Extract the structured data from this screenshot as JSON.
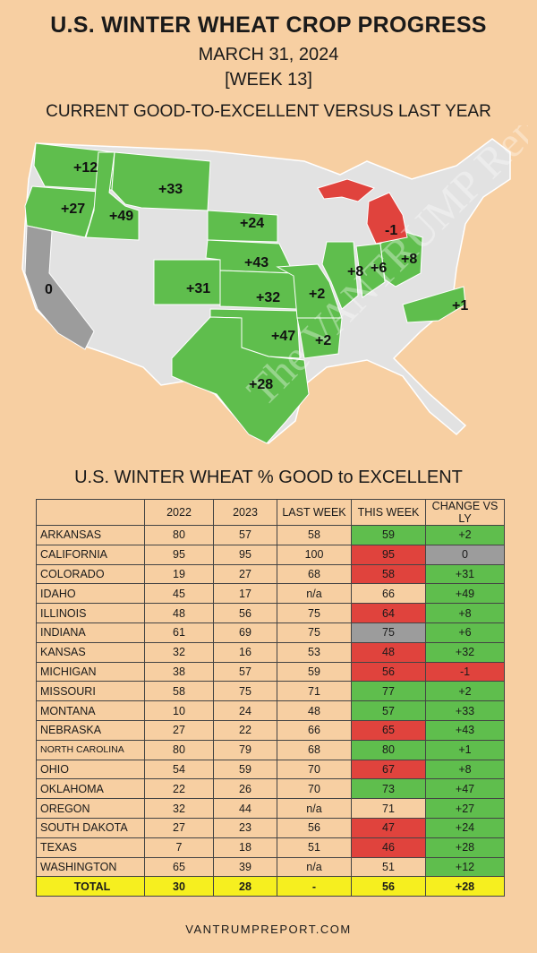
{
  "title": "U.S. WINTER WHEAT CROP PROGRESS",
  "date": "MARCH 31, 2024",
  "week": "[WEEK 13]",
  "map_subtitle": "CURRENT GOOD-TO-EXCELLENT VERSUS LAST YEAR",
  "watermark": "The VANTRUMP Report",
  "table_title": "U.S. WINTER WHEAT % GOOD to EXCELLENT",
  "footer": "VANTRUMPREPORT.COM",
  "colors": {
    "background": "#f7cfa2",
    "improved": "#5fbe4d",
    "declined": "#e0433d",
    "unchanged": "#9c9c9c",
    "total": "#f6ef1f",
    "no_data": "#e2e2e2"
  },
  "map": {
    "labels": [
      {
        "state": "WASHINGTON",
        "text": "+12"
      },
      {
        "state": "OREGON",
        "text": "+27"
      },
      {
        "state": "IDAHO",
        "text": "+49"
      },
      {
        "state": "MONTANA",
        "text": "+33"
      },
      {
        "state": "SOUTH DAKOTA",
        "text": "+24"
      },
      {
        "state": "NEBRASKA",
        "text": "+43"
      },
      {
        "state": "COLORADO",
        "text": "+31"
      },
      {
        "state": "KANSAS",
        "text": "+32"
      },
      {
        "state": "MISSOURI",
        "text": "+2"
      },
      {
        "state": "OKLAHOMA",
        "text": "+47"
      },
      {
        "state": "ARKANSAS",
        "text": "+2"
      },
      {
        "state": "TEXAS",
        "text": "+28"
      },
      {
        "state": "ILLINOIS",
        "text": "+8"
      },
      {
        "state": "INDIANA",
        "text": "+6"
      },
      {
        "state": "OHIO",
        "text": "+8"
      },
      {
        "state": "MICHIGAN",
        "text": "-1"
      },
      {
        "state": "NORTH CAROLINA",
        "text": "+1"
      },
      {
        "state": "CALIFORNIA",
        "text": "0"
      }
    ]
  },
  "chart_data": {
    "type": "table",
    "title": "U.S. WINTER WHEAT % GOOD to EXCELLENT",
    "columns": [
      "",
      "2022",
      "2023",
      "LAST WEEK",
      "THIS WEEK",
      "CHANGE VS LY"
    ],
    "rows": [
      {
        "state": "ARKANSAS",
        "y2022": "80",
        "y2023": "57",
        "last_week": "58",
        "this_week": "59",
        "change": "+2",
        "this_week_color": "green",
        "change_color": "green"
      },
      {
        "state": "CALIFORNIA",
        "y2022": "95",
        "y2023": "95",
        "last_week": "100",
        "this_week": "95",
        "change": "0",
        "this_week_color": "red",
        "change_color": "gray"
      },
      {
        "state": "COLORADO",
        "y2022": "19",
        "y2023": "27",
        "last_week": "68",
        "this_week": "58",
        "change": "+31",
        "this_week_color": "red",
        "change_color": "green"
      },
      {
        "state": "IDAHO",
        "y2022": "45",
        "y2023": "17",
        "last_week": "n/a",
        "this_week": "66",
        "change": "+49",
        "this_week_color": "none",
        "change_color": "green"
      },
      {
        "state": "ILLINOIS",
        "y2022": "48",
        "y2023": "56",
        "last_week": "75",
        "this_week": "64",
        "change": "+8",
        "this_week_color": "red",
        "change_color": "green"
      },
      {
        "state": "INDIANA",
        "y2022": "61",
        "y2023": "69",
        "last_week": "75",
        "this_week": "75",
        "change": "+6",
        "this_week_color": "gray",
        "change_color": "green"
      },
      {
        "state": "KANSAS",
        "y2022": "32",
        "y2023": "16",
        "last_week": "53",
        "this_week": "48",
        "change": "+32",
        "this_week_color": "red",
        "change_color": "green"
      },
      {
        "state": "MICHIGAN",
        "y2022": "38",
        "y2023": "57",
        "last_week": "59",
        "this_week": "56",
        "change": "-1",
        "this_week_color": "red",
        "change_color": "red"
      },
      {
        "state": "MISSOURI",
        "y2022": "58",
        "y2023": "75",
        "last_week": "71",
        "this_week": "77",
        "change": "+2",
        "this_week_color": "green",
        "change_color": "green"
      },
      {
        "state": "MONTANA",
        "y2022": "10",
        "y2023": "24",
        "last_week": "48",
        "this_week": "57",
        "change": "+33",
        "this_week_color": "green",
        "change_color": "green"
      },
      {
        "state": "NEBRASKA",
        "y2022": "27",
        "y2023": "22",
        "last_week": "66",
        "this_week": "65",
        "change": "+43",
        "this_week_color": "red",
        "change_color": "green"
      },
      {
        "state": "NORTH CAROLINA",
        "y2022": "80",
        "y2023": "79",
        "last_week": "68",
        "this_week": "80",
        "change": "+1",
        "this_week_color": "green",
        "change_color": "green"
      },
      {
        "state": "OHIO",
        "y2022": "54",
        "y2023": "59",
        "last_week": "70",
        "this_week": "67",
        "change": "+8",
        "this_week_color": "red",
        "change_color": "green"
      },
      {
        "state": "OKLAHOMA",
        "y2022": "22",
        "y2023": "26",
        "last_week": "70",
        "this_week": "73",
        "change": "+47",
        "this_week_color": "green",
        "change_color": "green"
      },
      {
        "state": "OREGON",
        "y2022": "32",
        "y2023": "44",
        "last_week": "n/a",
        "this_week": "71",
        "change": "+27",
        "this_week_color": "none",
        "change_color": "green"
      },
      {
        "state": "SOUTH DAKOTA",
        "y2022": "27",
        "y2023": "23",
        "last_week": "56",
        "this_week": "47",
        "change": "+24",
        "this_week_color": "red",
        "change_color": "green"
      },
      {
        "state": "TEXAS",
        "y2022": "7",
        "y2023": "18",
        "last_week": "51",
        "this_week": "46",
        "change": "+28",
        "this_week_color": "red",
        "change_color": "green"
      },
      {
        "state": "WASHINGTON",
        "y2022": "65",
        "y2023": "39",
        "last_week": "n/a",
        "this_week": "51",
        "change": "+12",
        "this_week_color": "none",
        "change_color": "green"
      }
    ],
    "total": {
      "state": "TOTAL",
      "y2022": "30",
      "y2023": "28",
      "last_week": "-",
      "this_week": "56",
      "change": "+28"
    }
  }
}
